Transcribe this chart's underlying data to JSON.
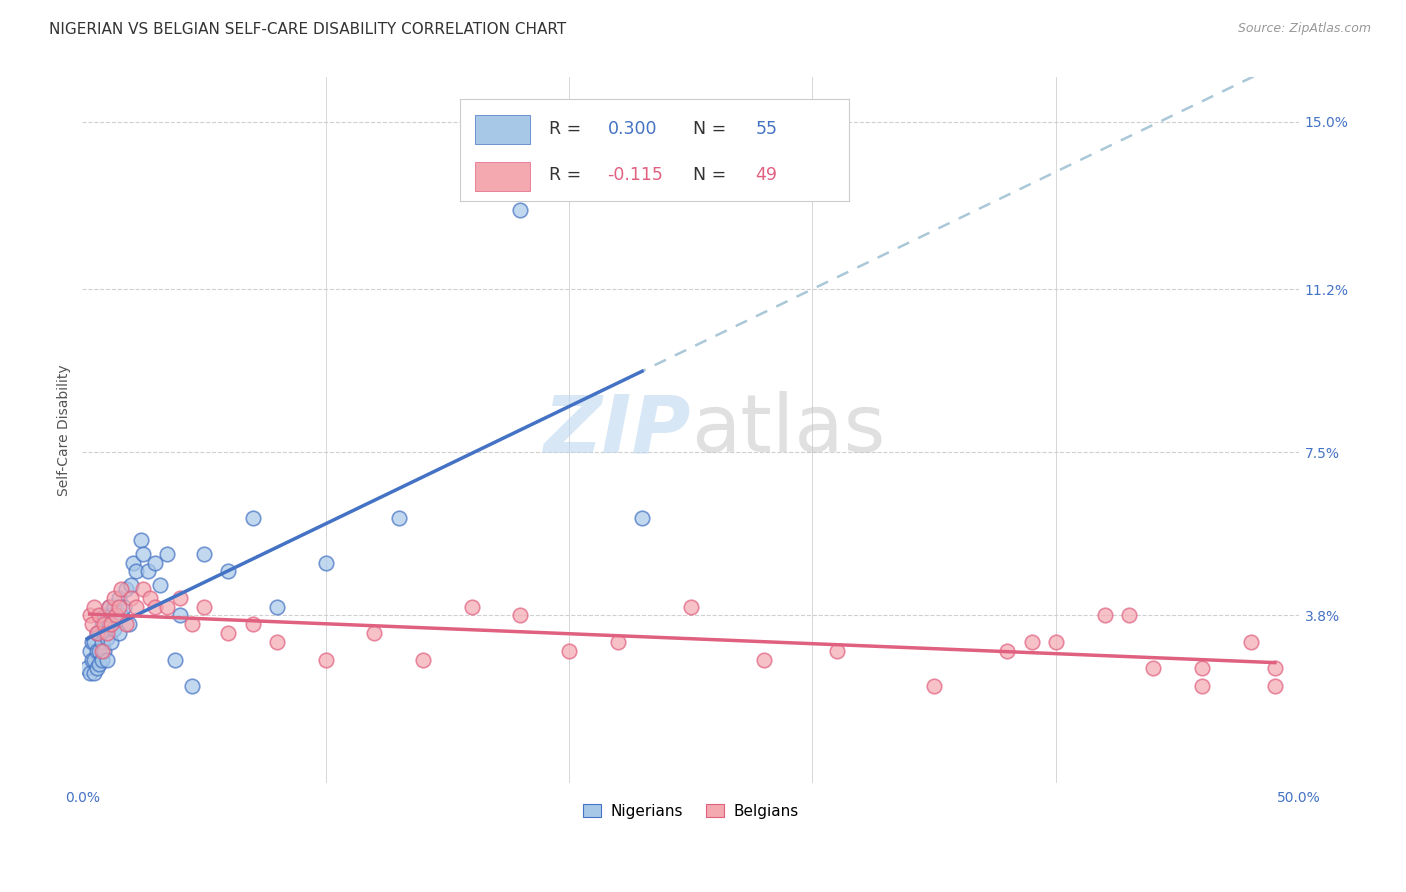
{
  "title": "NIGERIAN VS BELGIAN SELF-CARE DISABILITY CORRELATION CHART",
  "source": "Source: ZipAtlas.com",
  "ylabel": "Self-Care Disability",
  "xlim": [
    0.0,
    0.5
  ],
  "ylim": [
    0.0,
    0.16
  ],
  "xticks": [
    0.0,
    0.1,
    0.2,
    0.3,
    0.4,
    0.5
  ],
  "xticklabels": [
    "0.0%",
    "",
    "",
    "",
    "",
    "50.0%"
  ],
  "ytick_positions": [
    0.038,
    0.075,
    0.112,
    0.15
  ],
  "ytick_labels": [
    "3.8%",
    "7.5%",
    "11.2%",
    "15.0%"
  ],
  "nigerian_color": "#a8c8e8",
  "belgian_color": "#f4a8b0",
  "nigerian_line_color": "#4472c4",
  "belgian_line_color": "#e06080",
  "dashed_color": "#aac8d8",
  "R_nigerian_str": "0.300",
  "N_nigerian_str": "55",
  "R_belgian_str": "-0.115",
  "N_belgian_str": "49",
  "background_color": "#ffffff",
  "grid_color": "#d0d0d0",
  "nigerian_x": [
    0.002,
    0.003,
    0.003,
    0.004,
    0.004,
    0.005,
    0.005,
    0.005,
    0.006,
    0.006,
    0.006,
    0.007,
    0.007,
    0.007,
    0.008,
    0.008,
    0.008,
    0.009,
    0.009,
    0.009,
    0.01,
    0.01,
    0.011,
    0.011,
    0.012,
    0.012,
    0.013,
    0.013,
    0.014,
    0.015,
    0.015,
    0.016,
    0.017,
    0.018,
    0.019,
    0.02,
    0.021,
    0.022,
    0.024,
    0.025,
    0.027,
    0.03,
    0.032,
    0.035,
    0.038,
    0.04,
    0.045,
    0.05,
    0.06,
    0.07,
    0.08,
    0.1,
    0.13,
    0.18,
    0.23
  ],
  "nigerian_y": [
    0.026,
    0.025,
    0.03,
    0.028,
    0.032,
    0.025,
    0.028,
    0.032,
    0.026,
    0.03,
    0.034,
    0.027,
    0.03,
    0.034,
    0.028,
    0.032,
    0.036,
    0.03,
    0.034,
    0.038,
    0.028,
    0.033,
    0.036,
    0.04,
    0.032,
    0.038,
    0.035,
    0.04,
    0.038,
    0.034,
    0.042,
    0.038,
    0.04,
    0.044,
    0.036,
    0.045,
    0.05,
    0.048,
    0.055,
    0.052,
    0.048,
    0.05,
    0.045,
    0.052,
    0.028,
    0.038,
    0.022,
    0.052,
    0.048,
    0.06,
    0.04,
    0.05,
    0.06,
    0.13,
    0.06
  ],
  "belgian_x": [
    0.003,
    0.004,
    0.005,
    0.006,
    0.007,
    0.008,
    0.009,
    0.01,
    0.011,
    0.012,
    0.013,
    0.014,
    0.015,
    0.016,
    0.018,
    0.02,
    0.022,
    0.025,
    0.028,
    0.03,
    0.035,
    0.04,
    0.045,
    0.05,
    0.06,
    0.07,
    0.08,
    0.1,
    0.12,
    0.14,
    0.16,
    0.18,
    0.2,
    0.22,
    0.25,
    0.28,
    0.31,
    0.35,
    0.38,
    0.4,
    0.42,
    0.44,
    0.46,
    0.48,
    0.49,
    0.39,
    0.43,
    0.46,
    0.49
  ],
  "belgian_y": [
    0.038,
    0.036,
    0.04,
    0.034,
    0.038,
    0.03,
    0.036,
    0.034,
    0.04,
    0.036,
    0.042,
    0.038,
    0.04,
    0.044,
    0.036,
    0.042,
    0.04,
    0.044,
    0.042,
    0.04,
    0.04,
    0.042,
    0.036,
    0.04,
    0.034,
    0.036,
    0.032,
    0.028,
    0.034,
    0.028,
    0.04,
    0.038,
    0.03,
    0.032,
    0.04,
    0.028,
    0.03,
    0.022,
    0.03,
    0.032,
    0.038,
    0.026,
    0.022,
    0.032,
    0.026,
    0.032,
    0.038,
    0.026,
    0.022
  ],
  "title_fontsize": 11,
  "axis_label_fontsize": 10,
  "tick_fontsize": 10,
  "right_tick_color": "#4472c4",
  "legend_R_color": "#222222",
  "legend_N_color_nig": "#4472c4",
  "legend_N_color_bel": "#e06080"
}
